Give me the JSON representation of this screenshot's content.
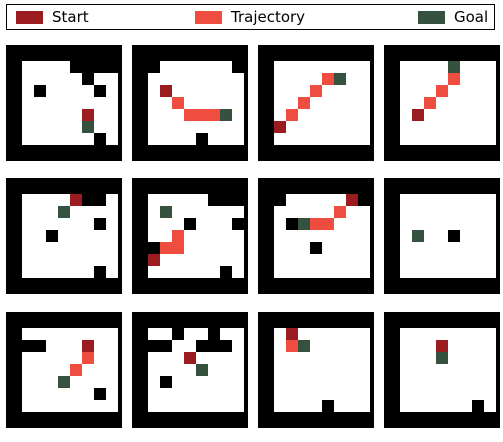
{
  "legend": {
    "start_label": "Start",
    "trajectory_label": "Trajectory",
    "goal_label": "Goal"
  },
  "colors": {
    "start": "#9b1c20",
    "trajectory": "#ee4d3f",
    "goal": "#36523f",
    "wall": "#000000",
    "floor": "#ffffff"
  },
  "mazes": [
    {
      "rows": [
        "000000000",
        "011110000",
        "011111011",
        "010111101",
        "011111111",
        "011111111",
        "011211111",
        "011111101",
        "000000000"
      ],
      "start": [
        5,
        6
      ],
      "goal": [
        6,
        6
      ],
      "trajectory": []
    },
    {
      "rows": [
        "000000000",
        "001111110",
        "011111111",
        "011111111",
        "011111111",
        "011111111",
        "011111111",
        "011110111",
        "000000000"
      ],
      "start": [
        3,
        2
      ],
      "goal": [
        5,
        7
      ],
      "trajectory": [
        [
          4,
          3
        ],
        [
          5,
          4
        ],
        [
          5,
          5
        ],
        [
          5,
          6
        ]
      ]
    },
    {
      "rows": [
        "000000000",
        "011111111",
        "011111111",
        "011111111",
        "011111111",
        "011111111",
        "011111111",
        "011111111",
        "000000000"
      ],
      "start": [
        6,
        1
      ],
      "goal": [
        2,
        6
      ],
      "trajectory": [
        [
          5,
          2
        ],
        [
          4,
          3
        ],
        [
          3,
          4
        ],
        [
          2,
          5
        ]
      ]
    },
    {
      "rows": [
        "000000000",
        "011111111",
        "011111111",
        "011101111",
        "011111111",
        "011111111",
        "011111111",
        "011111111",
        "000000000"
      ],
      "start": [
        5,
        2
      ],
      "goal": [
        1,
        5
      ],
      "trajectory": [
        [
          4,
          3
        ],
        [
          3,
          4
        ],
        [
          2,
          5
        ]
      ]
    },
    {
      "rows": [
        "000000000",
        "011110001",
        "011111111",
        "011111101",
        "011011111",
        "011111111",
        "011111111",
        "011111101",
        "000000000"
      ],
      "start": [
        1,
        5
      ],
      "goal": [
        2,
        4
      ],
      "trajectory": []
    },
    {
      "rows": [
        "000000000",
        "011111000",
        "011111111",
        "011101110",
        "011111111",
        "000011111",
        "011111111",
        "011111101",
        "000000000"
      ],
      "start": [
        6,
        1
      ],
      "goal": [
        2,
        2
      ],
      "trajectory": [
        [
          5,
          2
        ],
        [
          4,
          3
        ],
        [
          5,
          3
        ]
      ]
    },
    {
      "rows": [
        "000000000",
        "001111110",
        "011111111",
        "010111111",
        "011111111",
        "011101111",
        "011111111",
        "011111111",
        "000000000"
      ],
      "start": [
        1,
        7
      ],
      "goal": [
        3,
        3
      ],
      "trajectory": [
        [
          2,
          6
        ],
        [
          3,
          5
        ],
        [
          3,
          4
        ]
      ]
    },
    {
      "rows": [
        "000000000",
        "011111111",
        "011111111",
        "011111111",
        "011110111",
        "011111111",
        "011111111",
        "011111111",
        "000000000"
      ],
      "start": null,
      "goal": [
        4,
        2
      ],
      "trajectory": []
    },
    {
      "rows": [
        "000000000",
        "011111111",
        "000111111",
        "011111111",
        "011111111",
        "011111111",
        "011111101",
        "011111111",
        "000000000"
      ],
      "start": [
        2,
        6
      ],
      "goal": [
        5,
        4
      ],
      "trajectory": [
        [
          3,
          6
        ],
        [
          4,
          5
        ]
      ]
    },
    {
      "rows": [
        "000000000",
        "011011011",
        "000110001",
        "011111111",
        "011111111",
        "010111111",
        "011111111",
        "011111111",
        "000000000"
      ],
      "start": [
        3,
        4
      ],
      "goal": [
        4,
        5
      ],
      "trajectory": []
    },
    {
      "rows": [
        "000000000",
        "011111111",
        "011111111",
        "011111111",
        "011111111",
        "011111111",
        "011111111",
        "011110111",
        "000000000"
      ],
      "start": [
        1,
        2
      ],
      "goal": [
        2,
        3
      ],
      "trajectory": [
        [
          2,
          2
        ]
      ]
    },
    {
      "rows": [
        "000000000",
        "011111111",
        "011111111",
        "011111111",
        "011111111",
        "011111111",
        "011111111",
        "011111101",
        "000000000"
      ],
      "start": [
        2,
        4
      ],
      "goal": [
        3,
        4
      ],
      "trajectory": []
    }
  ]
}
